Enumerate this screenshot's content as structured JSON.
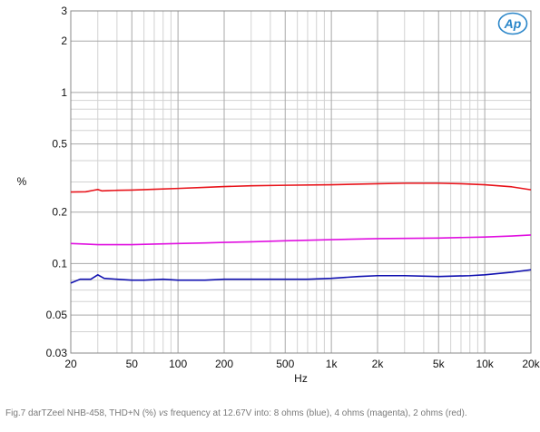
{
  "chart_data": {
    "type": "line",
    "xlabel": "Hz",
    "ylabel": "%",
    "x_scale": "log",
    "y_scale": "log",
    "xlim": [
      20,
      20000
    ],
    "ylim": [
      0.03,
      3
    ],
    "x_ticks": [
      20,
      50,
      100,
      200,
      500,
      1000,
      2000,
      5000,
      10000,
      20000
    ],
    "x_tick_labels": [
      "20",
      "50",
      "100",
      "200",
      "500",
      "1k",
      "2k",
      "5k",
      "10k",
      "20k"
    ],
    "y_ticks": [
      0.03,
      0.05,
      0.1,
      0.2,
      0.5,
      1,
      2,
      3
    ],
    "y_tick_labels": [
      "0.03",
      "0.05",
      "0.1",
      "0.2",
      "0.5",
      "1",
      "2",
      "3"
    ],
    "grid": true,
    "series": [
      {
        "color": "#e8141b",
        "x": [
          20,
          25,
          28,
          30,
          32,
          35,
          40,
          50,
          70,
          100,
          150,
          200,
          300,
          500,
          1000,
          2000,
          3000,
          5000,
          7000,
          10000,
          15000,
          20000
        ],
        "y": [
          0.262,
          0.263,
          0.268,
          0.271,
          0.266,
          0.267,
          0.268,
          0.269,
          0.272,
          0.275,
          0.279,
          0.282,
          0.285,
          0.287,
          0.289,
          0.293,
          0.295,
          0.295,
          0.293,
          0.289,
          0.281,
          0.27
        ]
      },
      {
        "color": "#e010e0",
        "x": [
          20,
          25,
          30,
          40,
          50,
          70,
          100,
          150,
          200,
          300,
          500,
          1000,
          2000,
          5000,
          10000,
          15000,
          20000
        ],
        "y": [
          0.131,
          0.13,
          0.129,
          0.129,
          0.129,
          0.13,
          0.131,
          0.132,
          0.133,
          0.134,
          0.136,
          0.138,
          0.14,
          0.141,
          0.143,
          0.145,
          0.147
        ]
      },
      {
        "color": "#1010b0",
        "x": [
          20,
          23,
          27,
          30,
          33,
          40,
          50,
          60,
          80,
          100,
          150,
          200,
          300,
          500,
          700,
          1000,
          1500,
          2000,
          3000,
          5000,
          8000,
          10000,
          15000,
          20000
        ],
        "y": [
          0.077,
          0.081,
          0.081,
          0.086,
          0.082,
          0.081,
          0.08,
          0.08,
          0.081,
          0.08,
          0.08,
          0.081,
          0.081,
          0.081,
          0.081,
          0.082,
          0.084,
          0.085,
          0.085,
          0.084,
          0.085,
          0.086,
          0.089,
          0.092
        ]
      }
    ]
  },
  "logo_text": "Ap",
  "caption": {
    "prefix": "Fig.7 darTZeel NHB-458, THD+N (%)",
    "italic": "vs",
    "suffix": "frequency at 12.67V into: 8 ohms (blue), 4 ohms (magenta), 2 ohms (red)."
  }
}
